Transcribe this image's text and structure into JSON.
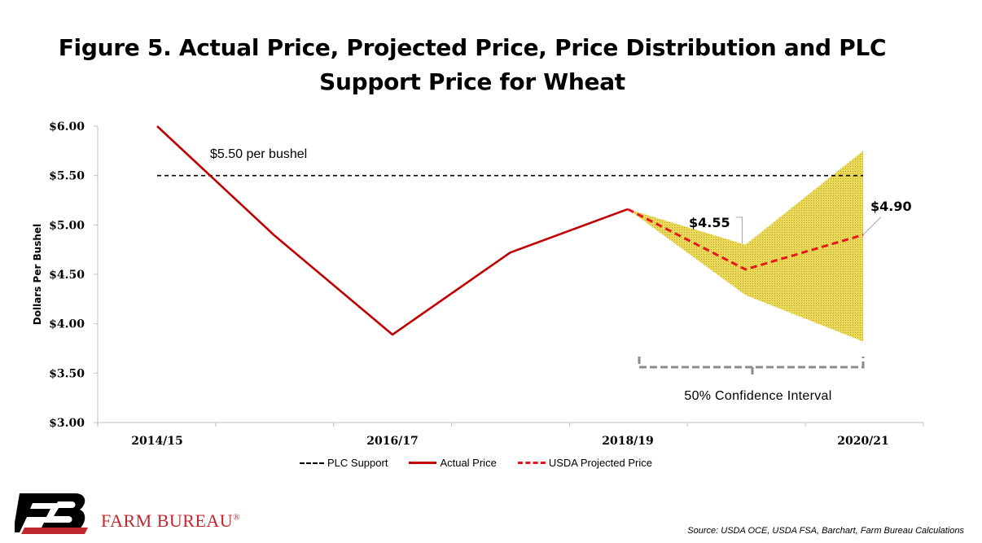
{
  "title_line1": "Figure 5. Actual Price, Projected Price, Price Distribution and PLC",
  "title_line2": "Support Price for Wheat",
  "brand": {
    "name": "FARM BUREAU",
    "mark": "®"
  },
  "source": "Source: USDA OCE, USDA FSA, Barchart, Farm Bureau Calculations",
  "colors": {
    "actual": "#c00000",
    "projected": "#e8151b",
    "plc": "#000000",
    "band": "#e6d24a",
    "bracket": "#8c8c8c"
  },
  "chart_data": {
    "type": "line",
    "ylabel": "Dollars Per Bushel",
    "ylim": [
      3.0,
      6.0
    ],
    "yticks": [
      "$6.00",
      "$5.50",
      "$5.00",
      "$4.50",
      "$4.00",
      "$3.50",
      "$3.00"
    ],
    "ytick_values": [
      6.0,
      5.5,
      5.0,
      4.5,
      4.0,
      3.5,
      3.0
    ],
    "categories": [
      "2014/15",
      "2015/16",
      "2016/17",
      "2017/18",
      "2018/19",
      "2019/20",
      "2020/21"
    ],
    "xtick_labels": [
      "2014/15",
      "",
      "2016/17",
      "",
      "2018/19",
      "",
      "2020/21"
    ],
    "series": [
      {
        "name": "PLC Support",
        "style": "dashed",
        "x": [
          "2014/15",
          "2020/21"
        ],
        "values": [
          5.5,
          5.5
        ]
      },
      {
        "name": "Actual Price",
        "style": "solid",
        "x": [
          "2014/15",
          "2015/16",
          "2016/17",
          "2017/18",
          "2018/19"
        ],
        "values": [
          6.0,
          4.89,
          3.89,
          4.72,
          5.16
        ]
      },
      {
        "name": "USDA Projected Price",
        "style": "dashed",
        "x": [
          "2018/19",
          "2019/20",
          "2020/21"
        ],
        "values": [
          5.16,
          4.55,
          4.9
        ]
      }
    ],
    "band": {
      "x": [
        "2018/19",
        "2019/20",
        "2020/21"
      ],
      "upper": [
        5.16,
        4.8,
        5.75
      ],
      "lower": [
        5.16,
        4.29,
        3.82
      ]
    },
    "annotations": {
      "plc_label": "$5.50 per bushel",
      "callout_2019": "$4.55",
      "callout_2020": "$4.90",
      "interval_label": "50% Confidence Interval"
    },
    "legend": [
      "PLC Support",
      "Actual Price",
      "USDA Projected Price"
    ],
    "legend_position": "bottom",
    "grid": false
  }
}
